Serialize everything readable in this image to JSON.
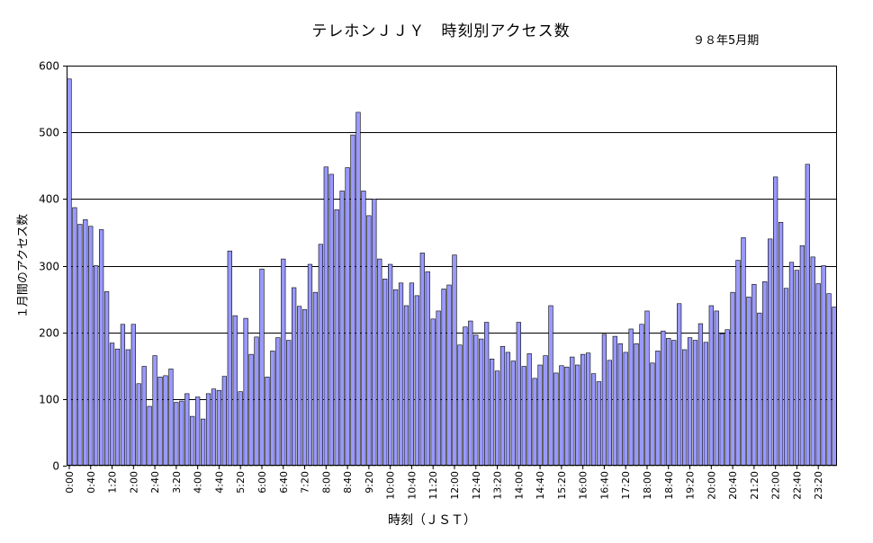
{
  "chart_data": {
    "type": "bar",
    "title": "テレホンＪＪＹ　時刻別アクセス数",
    "subtitle": "９８年5月期",
    "xlabel": "時刻（ＪＳＴ）",
    "ylabel": "１月間のアクセス数",
    "ylim": [
      0,
      600
    ],
    "yticks": [
      "0",
      "100",
      "200",
      "300",
      "400",
      "500",
      "600"
    ],
    "grid": true,
    "legend": "none",
    "bar_color": "#9999ff",
    "bar_edge_color": "#000000",
    "x_tick_labels": [
      "0:00",
      "0:40",
      "1:20",
      "2:00",
      "2:40",
      "3:20",
      "4:00",
      "4:40",
      "5:20",
      "6:00",
      "6:40",
      "7:20",
      "8:00",
      "8:40",
      "9:20",
      "10:00",
      "10:40",
      "11:20",
      "12:00",
      "12:40",
      "13:20",
      "14:00",
      "14:40",
      "15:20",
      "16:00",
      "16:40",
      "17:20",
      "18:00",
      "18:40",
      "19:20",
      "20:00",
      "20:40",
      "21:20",
      "22:00",
      "22:40",
      "23:20"
    ],
    "interval_minutes": 10,
    "values": [
      580,
      387,
      362,
      369,
      359,
      300,
      354,
      261,
      184,
      175,
      212,
      174,
      212,
      123,
      149,
      89,
      165,
      133,
      135,
      145,
      95,
      97,
      108,
      74,
      103,
      70,
      108,
      115,
      113,
      134,
      322,
      225,
      111,
      221,
      167,
      193,
      295,
      133,
      172,
      192,
      310,
      188,
      267,
      239,
      234,
      302,
      260,
      332,
      448,
      437,
      384,
      412,
      447,
      496,
      530,
      412,
      375,
      400,
      310,
      280,
      302,
      264,
      274,
      240,
      274,
      255,
      319,
      291,
      220,
      232,
      265,
      271,
      316,
      181,
      208,
      217,
      196,
      190,
      215,
      160,
      142,
      179,
      170,
      157,
      215,
      149,
      168,
      131,
      151,
      165,
      240,
      139,
      150,
      148,
      163,
      151,
      167,
      169,
      138,
      126,
      197,
      158,
      194,
      183,
      170,
      205,
      183,
      212,
      232,
      154,
      172,
      202,
      191,
      188,
      243,
      174,
      192,
      188,
      213,
      185,
      240,
      232,
      198,
      204,
      260,
      308,
      342,
      253,
      272,
      229,
      276,
      340,
      433,
      365,
      266,
      305,
      293,
      330,
      452,
      313,
      273,
      300,
      258,
      238
    ]
  }
}
